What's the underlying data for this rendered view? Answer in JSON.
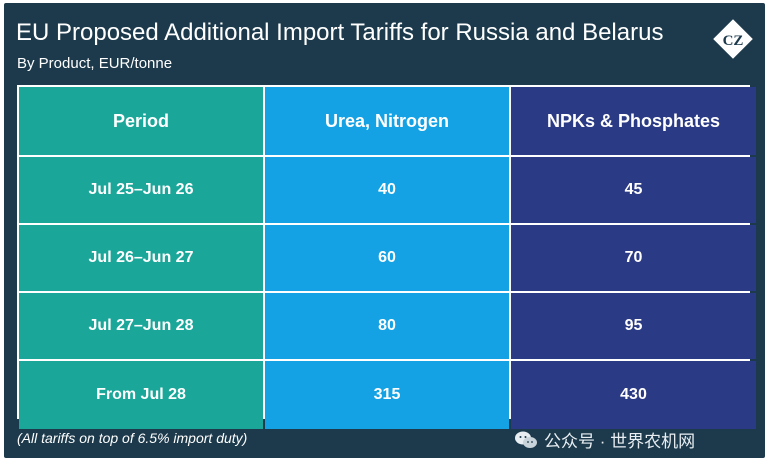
{
  "header": {
    "title": "EU Proposed Additional Import Tariffs for Russia and Belarus",
    "subtitle": "By Product, EUR/tonne",
    "logo_text": "CZ"
  },
  "chart_data": {
    "type": "table",
    "columns": [
      "Period",
      "Urea, Nitrogen",
      "NPKs & Phosphates"
    ],
    "rows": [
      [
        "Jul 25–Jun 26",
        "40",
        "45"
      ],
      [
        "Jul 26–Jun 27",
        "60",
        "70"
      ],
      [
        "Jul 27–Jun 28",
        "80",
        "95"
      ],
      [
        "From Jul 28",
        "315",
        "430"
      ]
    ],
    "unit": "EUR/tonne",
    "colors": {
      "period": "#1aa79a",
      "urea": "#14a2e4",
      "npk": "#2b3a84",
      "background": "#1c3a4c"
    }
  },
  "footnote": "(All tariffs on top of 6.5% import duty)",
  "watermark": {
    "text": "公众号 · 世界农机网",
    "icon": "wechat-icon"
  }
}
